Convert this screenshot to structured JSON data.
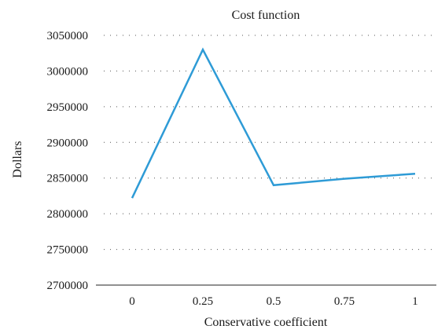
{
  "chart_data": {
    "type": "line",
    "title": "Cost function",
    "xlabel": "Conservative coefficient",
    "ylabel": "Dollars",
    "categories": [
      "0",
      "0.25",
      "0.5",
      "0.75",
      "1"
    ],
    "y_ticks": [
      "2700000",
      "2750000",
      "2800000",
      "2850000",
      "2900000",
      "2950000",
      "3000000",
      "3050000"
    ],
    "ylim": [
      2700000,
      3050000
    ],
    "grid": "horizontal dotted",
    "series": [
      {
        "values": [
          2822000,
          3030000,
          2840000,
          2849000,
          2856000
        ]
      }
    ],
    "colors": {
      "line": "#2e9bd6",
      "axis": "#222222",
      "grid": "#555555"
    }
  }
}
